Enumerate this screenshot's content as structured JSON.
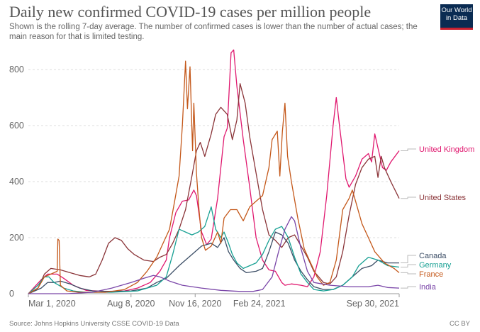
{
  "header": {
    "title": "Daily new confirmed COVID-19 cases per million people",
    "subtitle": "Shown is the rolling 7-day average. The number of confirmed cases is lower than the number of actual cases; the main reason for that is limited testing.",
    "logo_line1": "Our World",
    "logo_line2": "in Data"
  },
  "footer": {
    "source": "Source: Johns Hopkins University CSSE COVID-19 Data",
    "license": "CC BY"
  },
  "chart_data": {
    "type": "line",
    "title": "Daily new confirmed COVID-19 cases per million people",
    "xlabel": "",
    "ylabel": "",
    "x_unit": "days since Mar 1, 2020",
    "xlim": [
      0,
      578
    ],
    "ylim": [
      0,
      880
    ],
    "yticks": [
      0,
      200,
      400,
      600,
      800
    ],
    "xticks": [
      {
        "day": 0,
        "label": "Mar 1, 2020"
      },
      {
        "day": 160,
        "label": "Aug 8, 2020"
      },
      {
        "day": 260,
        "label": "Nov 16, 2020"
      },
      {
        "day": 360,
        "label": "Feb 24, 2021"
      },
      {
        "day": 578,
        "label": "Sep 30, 2021"
      }
    ],
    "grid": "horizontal dashed",
    "legend": "right, end-of-line labels",
    "series": [
      {
        "name": "United Kingdom",
        "color": "#e0186f",
        "points": [
          [
            0,
            0
          ],
          [
            20,
            50
          ],
          [
            30,
            70
          ],
          [
            45,
            70
          ],
          [
            55,
            55
          ],
          [
            70,
            30
          ],
          [
            90,
            12
          ],
          [
            120,
            8
          ],
          [
            150,
            10
          ],
          [
            170,
            20
          ],
          [
            190,
            40
          ],
          [
            205,
            80
          ],
          [
            215,
            120
          ],
          [
            220,
            200
          ],
          [
            230,
            290
          ],
          [
            240,
            330
          ],
          [
            250,
            335
          ],
          [
            258,
            370
          ],
          [
            262,
            350
          ],
          [
            270,
            220
          ],
          [
            278,
            175
          ],
          [
            285,
            195
          ],
          [
            295,
            340
          ],
          [
            305,
            560
          ],
          [
            310,
            590
          ],
          [
            316,
            860
          ],
          [
            320,
            870
          ],
          [
            325,
            740
          ],
          [
            335,
            550
          ],
          [
            345,
            380
          ],
          [
            355,
            200
          ],
          [
            365,
            120
          ],
          [
            375,
            85
          ],
          [
            385,
            80
          ],
          [
            395,
            40
          ],
          [
            400,
            30
          ],
          [
            410,
            35
          ],
          [
            425,
            30
          ],
          [
            435,
            25
          ],
          [
            445,
            60
          ],
          [
            455,
            150
          ],
          [
            465,
            350
          ],
          [
            475,
            600
          ],
          [
            480,
            700
          ],
          [
            485,
            600
          ],
          [
            495,
            410
          ],
          [
            500,
            380
          ],
          [
            510,
            420
          ],
          [
            520,
            480
          ],
          [
            530,
            500
          ],
          [
            535,
            470
          ],
          [
            540,
            570
          ],
          [
            545,
            520
          ],
          [
            552,
            450
          ],
          [
            558,
            440
          ],
          [
            565,
            470
          ],
          [
            578,
            510
          ]
        ]
      },
      {
        "name": "United States",
        "color": "#8a3438",
        "points": [
          [
            0,
            0
          ],
          [
            15,
            20
          ],
          [
            25,
            70
          ],
          [
            35,
            90
          ],
          [
            50,
            85
          ],
          [
            65,
            75
          ],
          [
            80,
            65
          ],
          [
            95,
            60
          ],
          [
            105,
            70
          ],
          [
            115,
            120
          ],
          [
            125,
            180
          ],
          [
            135,
            200
          ],
          [
            145,
            190
          ],
          [
            155,
            160
          ],
          [
            165,
            140
          ],
          [
            180,
            120
          ],
          [
            195,
            115
          ],
          [
            205,
            130
          ],
          [
            215,
            140
          ],
          [
            225,
            180
          ],
          [
            235,
            230
          ],
          [
            245,
            300
          ],
          [
            255,
            420
          ],
          [
            262,
            510
          ],
          [
            268,
            540
          ],
          [
            275,
            490
          ],
          [
            285,
            570
          ],
          [
            292,
            640
          ],
          [
            300,
            665
          ],
          [
            310,
            640
          ],
          [
            318,
            550
          ],
          [
            325,
            620
          ],
          [
            330,
            750
          ],
          [
            338,
            680
          ],
          [
            345,
            560
          ],
          [
            355,
            430
          ],
          [
            365,
            300
          ],
          [
            375,
            210
          ],
          [
            385,
            190
          ],
          [
            395,
            165
          ],
          [
            405,
            200
          ],
          [
            415,
            210
          ],
          [
            425,
            170
          ],
          [
            435,
            130
          ],
          [
            445,
            80
          ],
          [
            460,
            40
          ],
          [
            470,
            35
          ],
          [
            480,
            60
          ],
          [
            490,
            150
          ],
          [
            500,
            280
          ],
          [
            510,
            390
          ],
          [
            520,
            450
          ],
          [
            530,
            480
          ],
          [
            540,
            490
          ],
          [
            545,
            415
          ],
          [
            550,
            490
          ],
          [
            555,
            450
          ],
          [
            565,
            400
          ],
          [
            578,
            340
          ]
        ]
      },
      {
        "name": "Canada",
        "color": "#3c4e66",
        "points": [
          [
            0,
            0
          ],
          [
            20,
            20
          ],
          [
            30,
            40
          ],
          [
            40,
            40
          ],
          [
            50,
            45
          ],
          [
            65,
            35
          ],
          [
            80,
            20
          ],
          [
            100,
            10
          ],
          [
            130,
            8
          ],
          [
            160,
            10
          ],
          [
            185,
            20
          ],
          [
            200,
            40
          ],
          [
            215,
            55
          ],
          [
            235,
            100
          ],
          [
            255,
            140
          ],
          [
            270,
            170
          ],
          [
            285,
            180
          ],
          [
            295,
            165
          ],
          [
            305,
            200
          ],
          [
            312,
            150
          ],
          [
            320,
            120
          ],
          [
            330,
            90
          ],
          [
            340,
            75
          ],
          [
            355,
            80
          ],
          [
            365,
            90
          ],
          [
            375,
            150
          ],
          [
            385,
            220
          ],
          [
            395,
            210
          ],
          [
            405,
            180
          ],
          [
            415,
            120
          ],
          [
            425,
            80
          ],
          [
            435,
            50
          ],
          [
            445,
            25
          ],
          [
            460,
            15
          ],
          [
            475,
            15
          ],
          [
            490,
            30
          ],
          [
            505,
            60
          ],
          [
            520,
            90
          ],
          [
            535,
            100
          ],
          [
            545,
            120
          ],
          [
            560,
            110
          ],
          [
            578,
            110
          ]
        ]
      },
      {
        "name": "Germany",
        "color": "#17a093",
        "points": [
          [
            0,
            0
          ],
          [
            15,
            30
          ],
          [
            25,
            60
          ],
          [
            32,
            60
          ],
          [
            40,
            40
          ],
          [
            55,
            20
          ],
          [
            70,
            10
          ],
          [
            90,
            5
          ],
          [
            130,
            5
          ],
          [
            170,
            10
          ],
          [
            200,
            30
          ],
          [
            215,
            60
          ],
          [
            225,
            140
          ],
          [
            235,
            230
          ],
          [
            245,
            220
          ],
          [
            255,
            210
          ],
          [
            265,
            220
          ],
          [
            275,
            240
          ],
          [
            285,
            310
          ],
          [
            292,
            230
          ],
          [
            300,
            200
          ],
          [
            305,
            220
          ],
          [
            312,
            180
          ],
          [
            318,
            140
          ],
          [
            325,
            110
          ],
          [
            335,
            90
          ],
          [
            345,
            100
          ],
          [
            355,
            110
          ],
          [
            365,
            140
          ],
          [
            375,
            190
          ],
          [
            385,
            230
          ],
          [
            395,
            240
          ],
          [
            405,
            200
          ],
          [
            415,
            130
          ],
          [
            425,
            70
          ],
          [
            435,
            40
          ],
          [
            445,
            15
          ],
          [
            460,
            10
          ],
          [
            475,
            15
          ],
          [
            490,
            30
          ],
          [
            505,
            60
          ],
          [
            515,
            100
          ],
          [
            530,
            130
          ],
          [
            545,
            120
          ],
          [
            560,
            100
          ],
          [
            578,
            95
          ]
        ]
      },
      {
        "name": "France",
        "color": "#c4581a",
        "points": [
          [
            0,
            0
          ],
          [
            15,
            20
          ],
          [
            25,
            60
          ],
          [
            35,
            70
          ],
          [
            45,
            80
          ],
          [
            46,
            195
          ],
          [
            48,
            190
          ],
          [
            50,
            30
          ],
          [
            60,
            10
          ],
          [
            80,
            5
          ],
          [
            120,
            5
          ],
          [
            150,
            15
          ],
          [
            170,
            40
          ],
          [
            185,
            80
          ],
          [
            200,
            130
          ],
          [
            210,
            180
          ],
          [
            220,
            230
          ],
          [
            228,
            330
          ],
          [
            235,
            420
          ],
          [
            240,
            600
          ],
          [
            245,
            830
          ],
          [
            248,
            660
          ],
          [
            252,
            810
          ],
          [
            256,
            510
          ],
          [
            258,
            680
          ],
          [
            262,
            430
          ],
          [
            266,
            300
          ],
          [
            270,
            200
          ],
          [
            276,
            155
          ],
          [
            285,
            170
          ],
          [
            295,
            220
          ],
          [
            300,
            180
          ],
          [
            305,
            270
          ],
          [
            315,
            300
          ],
          [
            325,
            300
          ],
          [
            335,
            260
          ],
          [
            345,
            310
          ],
          [
            355,
            330
          ],
          [
            365,
            350
          ],
          [
            375,
            450
          ],
          [
            380,
            550
          ],
          [
            388,
            580
          ],
          [
            392,
            420
          ],
          [
            396,
            580
          ],
          [
            400,
            680
          ],
          [
            404,
            490
          ],
          [
            410,
            400
          ],
          [
            420,
            270
          ],
          [
            430,
            160
          ],
          [
            440,
            110
          ],
          [
            450,
            60
          ],
          [
            460,
            30
          ],
          [
            470,
            40
          ],
          [
            480,
            120
          ],
          [
            490,
            300
          ],
          [
            500,
            340
          ],
          [
            505,
            370
          ],
          [
            510,
            330
          ],
          [
            520,
            250
          ],
          [
            530,
            200
          ],
          [
            540,
            150
          ],
          [
            555,
            110
          ],
          [
            570,
            90
          ],
          [
            578,
            75
          ]
        ]
      },
      {
        "name": "India",
        "color": "#7a46a8",
        "points": [
          [
            0,
            0
          ],
          [
            60,
            0
          ],
          [
            100,
            5
          ],
          [
            130,
            20
          ],
          [
            160,
            40
          ],
          [
            180,
            55
          ],
          [
            195,
            65
          ],
          [
            205,
            60
          ],
          [
            220,
            45
          ],
          [
            240,
            30
          ],
          [
            270,
            20
          ],
          [
            300,
            12
          ],
          [
            330,
            8
          ],
          [
            350,
            8
          ],
          [
            365,
            15
          ],
          [
            380,
            60
          ],
          [
            390,
            150
          ],
          [
            400,
            230
          ],
          [
            410,
            275
          ],
          [
            415,
            260
          ],
          [
            425,
            160
          ],
          [
            435,
            80
          ],
          [
            445,
            40
          ],
          [
            470,
            30
          ],
          [
            500,
            25
          ],
          [
            530,
            25
          ],
          [
            545,
            30
          ],
          [
            560,
            22
          ],
          [
            578,
            20
          ]
        ]
      }
    ]
  }
}
